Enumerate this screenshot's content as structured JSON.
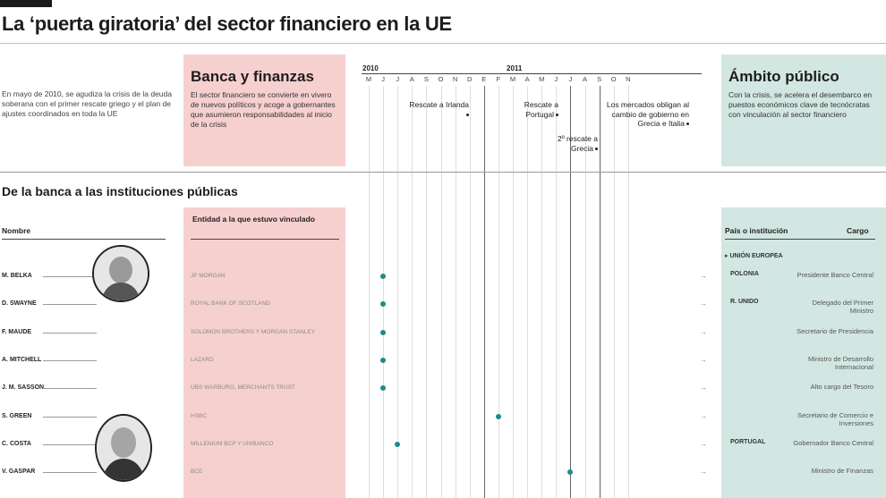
{
  "title": "La ‘puerta giratoria’ del sector financiero en la UE",
  "intro": "En mayo de 2010, se agudiza la crisis de la deuda soberana con el primer rescate griego y el plan de ajustes coordinados en toda la UE",
  "banca": {
    "heading": "Banca y finanzas",
    "text": "El sector financiero se convierte en vivero de nuevos políticos y acoge a gobernantes que asumieron responsabilidades al inicio de la crisis"
  },
  "ambito": {
    "heading": "Ámbito público",
    "text": "Con la crisis, se acelera el desembarco en puestos económicos clave de tecnócratas con vinculación al sector financiero"
  },
  "timeline": {
    "years": [
      "2010",
      "2011"
    ],
    "months": [
      "M",
      "J",
      "J",
      "A",
      "S",
      "O",
      "N",
      "D",
      "E",
      "F",
      "M",
      "A",
      "M",
      "J",
      "J",
      "A",
      "S",
      "O",
      "N"
    ],
    "events": [
      {
        "label": "Rescate a Irlanda"
      },
      {
        "label": "Rescate a Portugal"
      },
      {
        "label": "2º rescate a Grecia"
      },
      {
        "label": "Los mercados obligan al cambio de gobierno en Grecia e Italia"
      }
    ]
  },
  "section_title": "De la banca a las instituciones públicas",
  "columns": {
    "nombre": "Nombre",
    "entidad": "Entidad a la que estuvo vinculado",
    "pais": "País o institución",
    "cargo": "Cargo"
  },
  "group_header": "▸ UNIÓN EUROPEA",
  "people": [
    {
      "name": "M. BELKA",
      "entity": "JP MORGAN",
      "month": 1,
      "country": "POLONIA",
      "cargo": "Presidente Banco Central"
    },
    {
      "name": "D. SWAYNE",
      "entity": "ROYAL BANK OF SCOTLAND",
      "month": 1,
      "country": "R. UNIDO",
      "cargo": "Delegado del Primer Ministro"
    },
    {
      "name": "F. MAUDE",
      "entity": "SOLOMON BROTHERS Y MORGAN STANLEY",
      "month": 1,
      "country": "",
      "cargo": "Secretario de Presidencia"
    },
    {
      "name": "A. MITCHELL",
      "entity": "LAZARD",
      "month": 1,
      "country": "",
      "cargo": "Ministro de Desarrollo Internacional"
    },
    {
      "name": "J. M. SASSON",
      "entity": "UBS WARBURG, MERCHANTS TRUST",
      "month": 1,
      "country": "",
      "cargo": "Alto cargo del Tesoro"
    },
    {
      "name": "S. GREEN",
      "entity": "HSBC",
      "month": 9,
      "country": "",
      "cargo": "Secretario de Comercio e Inversiones"
    },
    {
      "name": "C. COSTA",
      "entity": "MILLENIUM BCP Y UNIBANCO",
      "month": 2,
      "country": "PORTUGAL",
      "cargo": "Gobernador Banco Central"
    },
    {
      "name": "V. GASPAR",
      "entity": "BCE",
      "month": 14,
      "country": "",
      "cargo": "Ministro de Finanzas"
    }
  ]
}
